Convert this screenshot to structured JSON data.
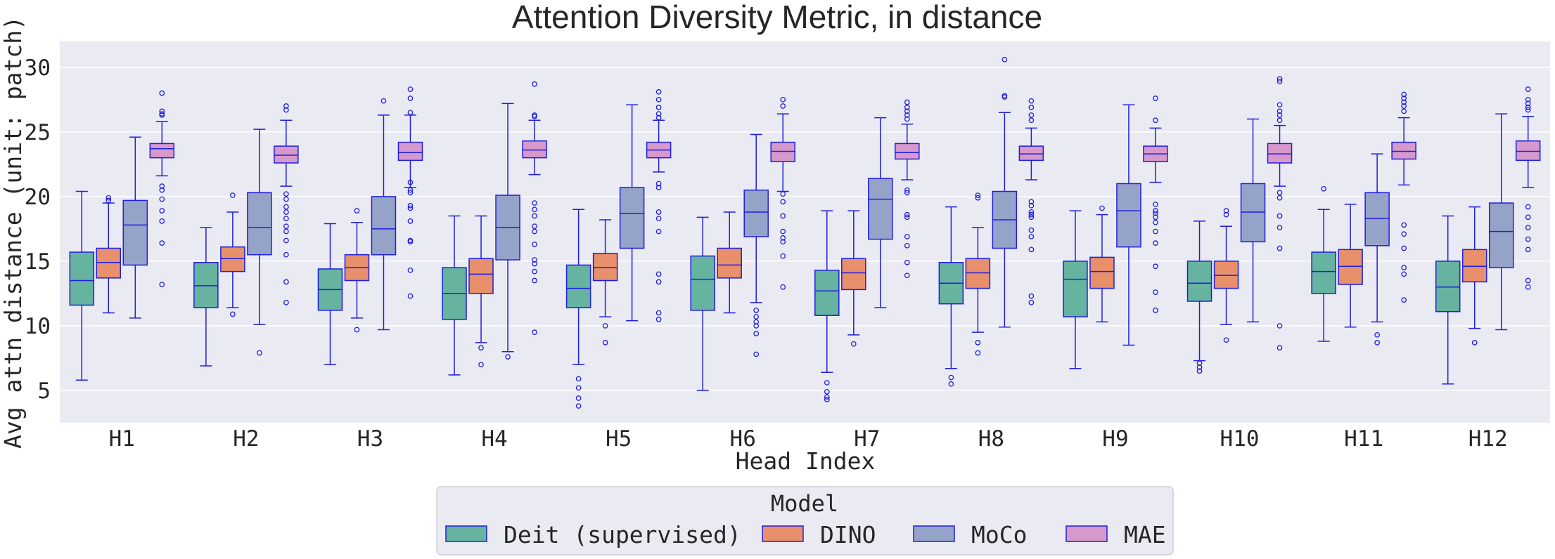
{
  "chart_data": {
    "type": "box",
    "title": "Attention Diversity Metric, in distance",
    "xlabel": "Head Index",
    "ylabel": "Avg attn distance (unit: patch)",
    "ylim": [
      2.5,
      32
    ],
    "yticks": [
      5,
      10,
      15,
      20,
      25,
      30
    ],
    "categories": [
      "H1",
      "H2",
      "H3",
      "H4",
      "H5",
      "H6",
      "H7",
      "H8",
      "H9",
      "H10",
      "H11",
      "H12"
    ],
    "grid": true,
    "legend_position": "bottom-center",
    "legend_title": "Model",
    "box_edge_color": "#1f1fe0",
    "series": [
      {
        "name": "Deit (supervised)",
        "color": "#66b3a0",
        "boxes": [
          {
            "whislo": 5.8,
            "q1": 11.6,
            "med": 13.5,
            "q3": 15.7,
            "whishi": 20.4,
            "fliers": []
          },
          {
            "whislo": 6.9,
            "q1": 11.4,
            "med": 13.1,
            "q3": 14.9,
            "whishi": 17.6,
            "fliers": []
          },
          {
            "whislo": 7.0,
            "q1": 11.2,
            "med": 12.8,
            "q3": 14.4,
            "whishi": 17.9,
            "fliers": []
          },
          {
            "whislo": 6.2,
            "q1": 10.5,
            "med": 12.5,
            "q3": 14.5,
            "whishi": 18.5,
            "fliers": []
          },
          {
            "whislo": 7.0,
            "q1": 11.4,
            "med": 12.9,
            "q3": 14.7,
            "whishi": 19.0,
            "fliers": [
              5.9,
              5.2,
              4.4,
              3.8
            ]
          },
          {
            "whislo": 5.0,
            "q1": 11.2,
            "med": 13.6,
            "q3": 15.4,
            "whishi": 18.4,
            "fliers": []
          },
          {
            "whislo": 6.4,
            "q1": 10.8,
            "med": 12.7,
            "q3": 14.3,
            "whishi": 18.9,
            "fliers": [
              5.6,
              4.9,
              4.5,
              4.3
            ]
          },
          {
            "whislo": 6.7,
            "q1": 11.7,
            "med": 13.3,
            "q3": 14.9,
            "whishi": 19.2,
            "fliers": [
              6.0,
              5.5
            ]
          },
          {
            "whislo": 6.7,
            "q1": 10.7,
            "med": 13.6,
            "q3": 15.0,
            "whishi": 18.9,
            "fliers": []
          },
          {
            "whislo": 7.3,
            "q1": 11.9,
            "med": 13.3,
            "q3": 15.0,
            "whishi": 18.1,
            "fliers": [
              7.1,
              6.8,
              6.5
            ]
          },
          {
            "whislo": 8.8,
            "q1": 12.5,
            "med": 14.2,
            "q3": 15.7,
            "whishi": 19.0,
            "fliers": [
              20.6
            ]
          },
          {
            "whislo": 5.5,
            "q1": 11.1,
            "med": 13.0,
            "q3": 15.0,
            "whishi": 18.5,
            "fliers": []
          }
        ]
      },
      {
        "name": "DINO",
        "color": "#e88f6c",
        "boxes": [
          {
            "whislo": 11.0,
            "q1": 13.7,
            "med": 14.9,
            "q3": 16.0,
            "whishi": 19.5,
            "fliers": [
              19.7,
              19.9
            ]
          },
          {
            "whislo": 11.4,
            "q1": 14.2,
            "med": 15.2,
            "q3": 16.1,
            "whishi": 18.8,
            "fliers": [
              20.1,
              10.9
            ]
          },
          {
            "whislo": 10.6,
            "q1": 13.5,
            "med": 14.5,
            "q3": 15.5,
            "whishi": 18.0,
            "fliers": [
              18.9,
              9.7
            ]
          },
          {
            "whislo": 8.7,
            "q1": 12.5,
            "med": 14.0,
            "q3": 15.2,
            "whishi": 18.5,
            "fliers": [
              8.3,
              7.0
            ]
          },
          {
            "whislo": 10.7,
            "q1": 13.5,
            "med": 14.5,
            "q3": 15.6,
            "whishi": 18.2,
            "fliers": [
              10.0,
              8.7
            ]
          },
          {
            "whislo": 11.0,
            "q1": 13.7,
            "med": 14.7,
            "q3": 16.0,
            "whishi": 18.8,
            "fliers": []
          },
          {
            "whislo": 9.3,
            "q1": 12.8,
            "med": 14.1,
            "q3": 15.2,
            "whishi": 18.9,
            "fliers": [
              8.6
            ]
          },
          {
            "whislo": 9.5,
            "q1": 12.9,
            "med": 14.1,
            "q3": 15.2,
            "whishi": 17.6,
            "fliers": [
              19.9,
              20.1,
              8.7,
              7.9
            ]
          },
          {
            "whislo": 10.3,
            "q1": 12.9,
            "med": 14.2,
            "q3": 15.3,
            "whishi": 18.6,
            "fliers": [
              19.1
            ]
          },
          {
            "whislo": 10.1,
            "q1": 12.9,
            "med": 13.9,
            "q3": 15.0,
            "whishi": 17.7,
            "fliers": [
              18.6,
              18.9,
              8.9
            ]
          },
          {
            "whislo": 9.9,
            "q1": 13.2,
            "med": 14.6,
            "q3": 15.9,
            "whishi": 19.4,
            "fliers": []
          },
          {
            "whislo": 9.8,
            "q1": 13.4,
            "med": 14.6,
            "q3": 15.9,
            "whishi": 19.2,
            "fliers": [
              8.7
            ]
          }
        ]
      },
      {
        "name": "MoCo",
        "color": "#96a3c8",
        "boxes": [
          {
            "whislo": 10.6,
            "q1": 14.7,
            "med": 17.8,
            "q3": 19.7,
            "whishi": 24.6,
            "fliers": []
          },
          {
            "whislo": 10.1,
            "q1": 15.5,
            "med": 17.6,
            "q3": 20.3,
            "whishi": 25.2,
            "fliers": [
              7.9
            ]
          },
          {
            "whislo": 9.7,
            "q1": 15.5,
            "med": 17.5,
            "q3": 20.0,
            "whishi": 26.3,
            "fliers": [
              27.4
            ]
          },
          {
            "whislo": 8.0,
            "q1": 15.1,
            "med": 17.6,
            "q3": 20.1,
            "whishi": 27.2,
            "fliers": [
              7.6
            ]
          },
          {
            "whislo": 10.4,
            "q1": 16.0,
            "med": 18.7,
            "q3": 20.7,
            "whishi": 27.1,
            "fliers": []
          },
          {
            "whislo": 11.8,
            "q1": 16.9,
            "med": 18.8,
            "q3": 20.5,
            "whishi": 24.8,
            "fliers": [
              11.2,
              10.7,
              10.3,
              10.0,
              9.4,
              7.8
            ]
          },
          {
            "whislo": 11.4,
            "q1": 16.7,
            "med": 19.8,
            "q3": 21.4,
            "whishi": 26.1,
            "fliers": []
          },
          {
            "whislo": 9.9,
            "q1": 16.0,
            "med": 18.2,
            "q3": 20.4,
            "whishi": 26.5,
            "fliers": [
              27.7,
              27.8,
              30.6
            ]
          },
          {
            "whislo": 8.5,
            "q1": 16.1,
            "med": 18.9,
            "q3": 21.0,
            "whishi": 27.1,
            "fliers": []
          },
          {
            "whislo": 10.3,
            "q1": 16.5,
            "med": 18.8,
            "q3": 21.0,
            "whishi": 26.0,
            "fliers": []
          },
          {
            "whislo": 10.3,
            "q1": 16.2,
            "med": 18.3,
            "q3": 20.3,
            "whishi": 23.3,
            "fliers": [
              9.3,
              8.7
            ]
          },
          {
            "whislo": 9.7,
            "q1": 14.5,
            "med": 17.3,
            "q3": 19.5,
            "whishi": 26.4,
            "fliers": []
          }
        ]
      },
      {
        "name": "MAE",
        "color": "#d799cb",
        "boxes": [
          {
            "whislo": 21.6,
            "q1": 23.0,
            "med": 23.7,
            "q3": 24.1,
            "whishi": 25.8,
            "fliers": [
              28.0,
              26.6,
              26.4,
              26.3,
              20.8,
              20.5,
              19.8,
              18.9,
              18.1,
              16.4,
              13.2
            ]
          },
          {
            "whislo": 20.8,
            "q1": 22.6,
            "med": 23.2,
            "q3": 23.9,
            "whishi": 25.9,
            "fliers": [
              27.0,
              26.7,
              20.2,
              19.8,
              19.2,
              18.8,
              18.3,
              17.7,
              17.3,
              16.6,
              15.5,
              13.4,
              11.8
            ]
          },
          {
            "whislo": 20.7,
            "q1": 22.8,
            "med": 23.4,
            "q3": 24.2,
            "whishi": 26.3,
            "fliers": [
              28.3,
              27.6,
              26.5,
              21.1,
              20.5,
              20.3,
              19.3,
              19.1,
              18.1,
              16.6,
              16.5,
              14.3,
              12.3
            ]
          },
          {
            "whislo": 21.7,
            "q1": 23.0,
            "med": 23.6,
            "q3": 24.3,
            "whishi": 25.9,
            "fliers": [
              28.7,
              26.3,
              26.2,
              19.5,
              19.0,
              18.5,
              17.7,
              17.3,
              16.3,
              15.1,
              14.8,
              14.2,
              13.5,
              9.5
            ]
          },
          {
            "whislo": 21.9,
            "q1": 23.0,
            "med": 23.6,
            "q3": 24.2,
            "whishi": 25.9,
            "fliers": [
              28.1,
              27.5,
              26.9,
              26.4,
              26.1,
              21.0,
              20.7,
              18.8,
              18.3,
              17.3,
              14.0,
              13.4,
              11.0,
              10.5
            ]
          },
          {
            "whislo": 20.4,
            "q1": 22.7,
            "med": 23.5,
            "q3": 24.2,
            "whishi": 26.4,
            "fliers": [
              27.5,
              27.0,
              20.2,
              19.6,
              18.5,
              17.3,
              16.8,
              16.5,
              15.4,
              13.0
            ]
          },
          {
            "whislo": 21.3,
            "q1": 22.9,
            "med": 23.4,
            "q3": 24.1,
            "whishi": 25.6,
            "fliers": [
              27.3,
              26.9,
              26.6,
              26.3,
              26.0,
              20.5,
              20.3,
              18.6,
              18.4,
              16.9,
              16.2,
              14.9,
              13.9
            ]
          },
          {
            "whislo": 21.3,
            "q1": 22.8,
            "med": 23.3,
            "q3": 23.9,
            "whishi": 25.3,
            "fliers": [
              27.4,
              26.9,
              26.3,
              25.9,
              19.6,
              19.3,
              18.8,
              18.6,
              18.4,
              17.4,
              16.9,
              15.9,
              12.3,
              11.8
            ]
          },
          {
            "whislo": 21.1,
            "q1": 22.7,
            "med": 23.3,
            "q3": 23.9,
            "whishi": 25.3,
            "fliers": [
              27.6,
              25.9,
              19.4,
              18.9,
              18.7,
              18.4,
              18.0,
              17.3,
              16.4,
              14.6,
              12.6,
              11.2
            ]
          },
          {
            "whislo": 20.8,
            "q1": 22.6,
            "med": 23.3,
            "q3": 24.1,
            "whishi": 25.5,
            "fliers": [
              29.1,
              28.9,
              27.1,
              26.6,
              26.3,
              25.9,
              20.3,
              19.9,
              18.5,
              17.6,
              16.0,
              10.0,
              8.3
            ]
          },
          {
            "whislo": 20.9,
            "q1": 22.9,
            "med": 23.5,
            "q3": 24.2,
            "whishi": 26.1,
            "fliers": [
              27.9,
              27.6,
              27.3,
              27.0,
              26.6,
              17.8,
              17.1,
              16.0,
              14.5,
              14.0,
              12.0
            ]
          },
          {
            "whislo": 20.7,
            "q1": 22.8,
            "med": 23.5,
            "q3": 24.3,
            "whishi": 26.2,
            "fliers": [
              28.3,
              27.5,
              27.2,
              26.9,
              26.7,
              19.2,
              18.4,
              17.6,
              16.7,
              15.9,
              13.5,
              13.0
            ]
          }
        ]
      }
    ]
  }
}
